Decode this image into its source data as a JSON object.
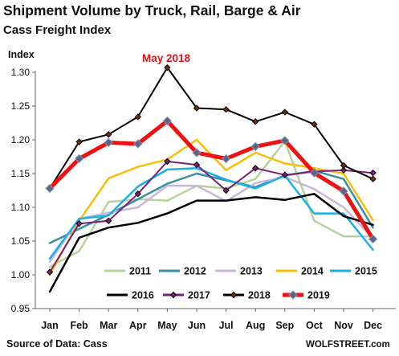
{
  "header": {
    "title": "Shipment Volume by Truck, Rail, Barge & Air",
    "subtitle": "Cass Freight Index"
  },
  "footer": {
    "source": "Source of Data: Cass",
    "brand": "WOLFSTREET.com"
  },
  "chart_data": {
    "type": "line",
    "title": "Shipment Volume by Truck, Rail, Barge & Air",
    "subtitle": "Cass Freight Index",
    "ylabel": "Index",
    "xlabel": "",
    "categories": [
      "Jan",
      "Feb",
      "Mar",
      "Apr",
      "May",
      "Jun",
      "Jul",
      "Aug",
      "Sep",
      "Oct",
      "Nov",
      "Dec"
    ],
    "ylim": [
      0.95,
      1.3
    ],
    "yticks": [
      "0.95",
      "1.00",
      "1.05",
      "1.10",
      "1.15",
      "1.20",
      "1.25",
      "1.30"
    ],
    "grid": false,
    "legend_position": "bottom",
    "annotation": {
      "text": "May 2018",
      "color": "#e4121b"
    },
    "series": [
      {
        "name": "2011",
        "color": "#b5d39a",
        "values": [
          1.012,
          1.035,
          1.108,
          1.112,
          1.11,
          1.132,
          1.128,
          1.142,
          1.198,
          1.08,
          1.057,
          1.057
        ]
      },
      {
        "name": "2012",
        "color": "#3a8fa0",
        "values": [
          1.047,
          1.068,
          1.089,
          1.112,
          1.135,
          1.15,
          1.14,
          1.13,
          1.147,
          1.154,
          1.142,
          1.07
        ]
      },
      {
        "name": "2013",
        "color": "#c7b7d9",
        "values": [
          1.019,
          1.083,
          1.092,
          1.1,
          1.132,
          1.132,
          1.109,
          1.136,
          1.145,
          1.127,
          1.1,
          1.054
        ]
      },
      {
        "name": "2014",
        "color": "#f7bf08",
        "values": [
          1.0,
          1.08,
          1.143,
          1.16,
          1.171,
          1.2,
          1.155,
          1.181,
          1.165,
          1.158,
          1.15,
          1.081
        ]
      },
      {
        "name": "2015",
        "color": "#19b0e6",
        "values": [
          1.024,
          1.083,
          1.088,
          1.131,
          1.156,
          1.158,
          1.141,
          1.128,
          1.147,
          1.091,
          1.091,
          1.037
        ]
      },
      {
        "name": "2016",
        "color": "#000000",
        "values": [
          0.975,
          1.055,
          1.07,
          1.077,
          1.091,
          1.11,
          1.11,
          1.115,
          1.111,
          1.12,
          1.087,
          1.074
        ]
      },
      {
        "name": "2017",
        "color": "#7b2078",
        "values": [
          1.004,
          1.076,
          1.08,
          1.12,
          1.168,
          1.163,
          1.125,
          1.158,
          1.148,
          1.153,
          1.155,
          1.151
        ]
      },
      {
        "name": "2018",
        "color": "#000000",
        "values": [
          1.128,
          1.197,
          1.208,
          1.234,
          1.307,
          1.247,
          1.245,
          1.227,
          1.241,
          1.223,
          1.162,
          1.142
        ]
      },
      {
        "name": "2019",
        "color": "#ee1111",
        "values": [
          1.128,
          1.172,
          1.196,
          1.194,
          1.228,
          1.181,
          1.172,
          1.19,
          1.199,
          1.151,
          1.124,
          1.053
        ]
      }
    ]
  }
}
